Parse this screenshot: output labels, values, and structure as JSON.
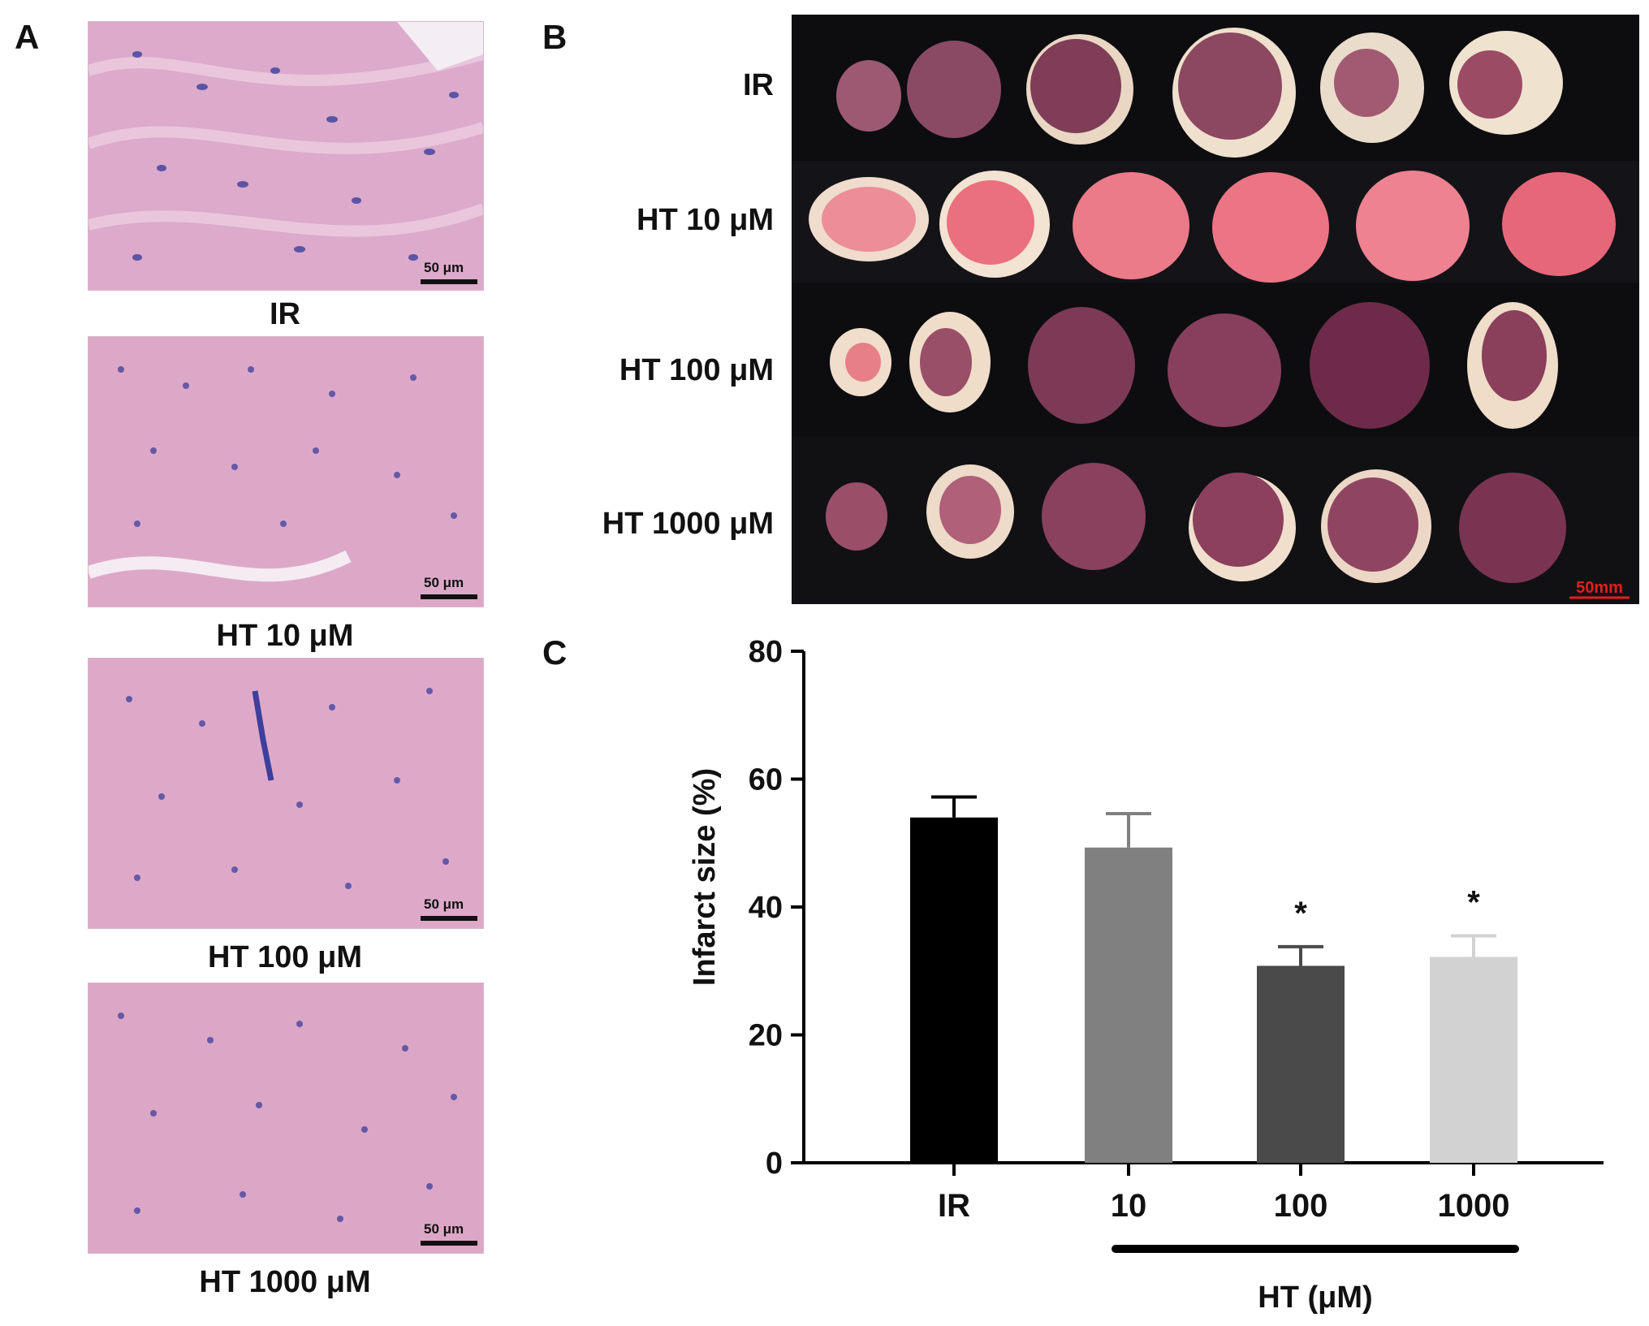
{
  "panel_a": {
    "letter": "A",
    "panels": [
      {
        "caption": "IR",
        "scale": "50 μm"
      },
      {
        "caption": "HT 10 μM",
        "scale": "50 μm"
      },
      {
        "caption": "HT 100 μM",
        "scale": "50 μm"
      },
      {
        "caption": "HT 1000 μM",
        "scale": "50 μm"
      }
    ]
  },
  "panel_b": {
    "letter": "B",
    "rows": [
      {
        "label": "IR"
      },
      {
        "label": "HT 10 μM"
      },
      {
        "label": "HT 100 μM"
      },
      {
        "label": "HT 1000 μM"
      }
    ],
    "scale": "50mm",
    "scale_color": "#e0201c"
  },
  "panel_c": {
    "letter": "C",
    "group_label": "HT (μM)"
  },
  "chart_data": {
    "type": "bar",
    "categories": [
      "IR",
      "10",
      "100",
      "1000"
    ],
    "values": [
      54,
      49.3,
      30.8,
      32.2
    ],
    "errors": [
      3.2,
      5.3,
      3.0,
      3.3
    ],
    "significance": [
      "",
      "",
      "*",
      "*"
    ],
    "colors": [
      "#000000",
      "#808080",
      "#4a4a4a",
      "#d2d2d2"
    ],
    "ylabel": "Infarct size  (%)",
    "yticks": [
      0,
      20,
      40,
      60,
      80
    ],
    "ylim": [
      0,
      80
    ],
    "xlabel": "HT (μM)"
  }
}
